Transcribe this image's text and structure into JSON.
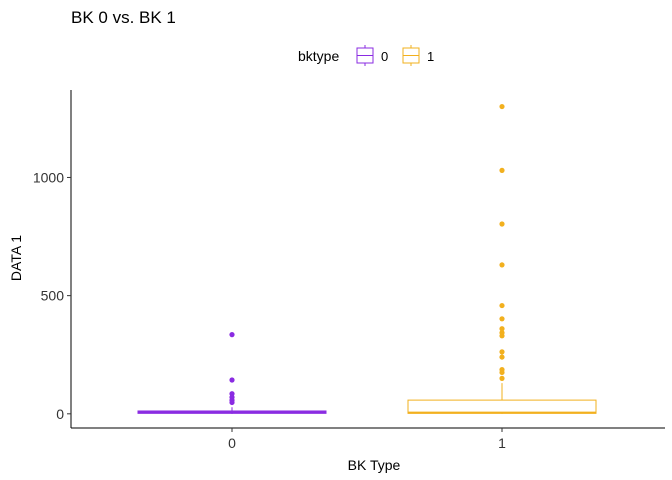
{
  "chart_data": {
    "type": "box",
    "title": "BK 0 vs. BK 1",
    "xlabel": "BK Type",
    "ylabel": "DATA 1",
    "ylim": [
      -60,
      1370
    ],
    "yticks": [
      0,
      500,
      1000
    ],
    "categories": [
      "0",
      "1"
    ],
    "legend": {
      "title": "bktype",
      "position": "top",
      "entries": [
        {
          "label": "0",
          "color": "#8A2BE2"
        },
        {
          "label": "1",
          "color": "#F2B01E"
        }
      ]
    },
    "grid": false,
    "series": [
      {
        "name": "0",
        "color": "#8A2BE2",
        "box": {
          "min": 0,
          "q1": 2,
          "median": 6,
          "q3": 12,
          "max": 28
        },
        "outliers": [
          335,
          143,
          85,
          70,
          58,
          48
        ]
      },
      {
        "name": "1",
        "color": "#F2B01E",
        "box": {
          "min": 0,
          "q1": 2,
          "median": 5,
          "q3": 58,
          "max": 130
        },
        "outliers": [
          1300,
          1030,
          803,
          630,
          458,
          402,
          360,
          343,
          330,
          262,
          240,
          187,
          175,
          150
        ]
      }
    ]
  }
}
